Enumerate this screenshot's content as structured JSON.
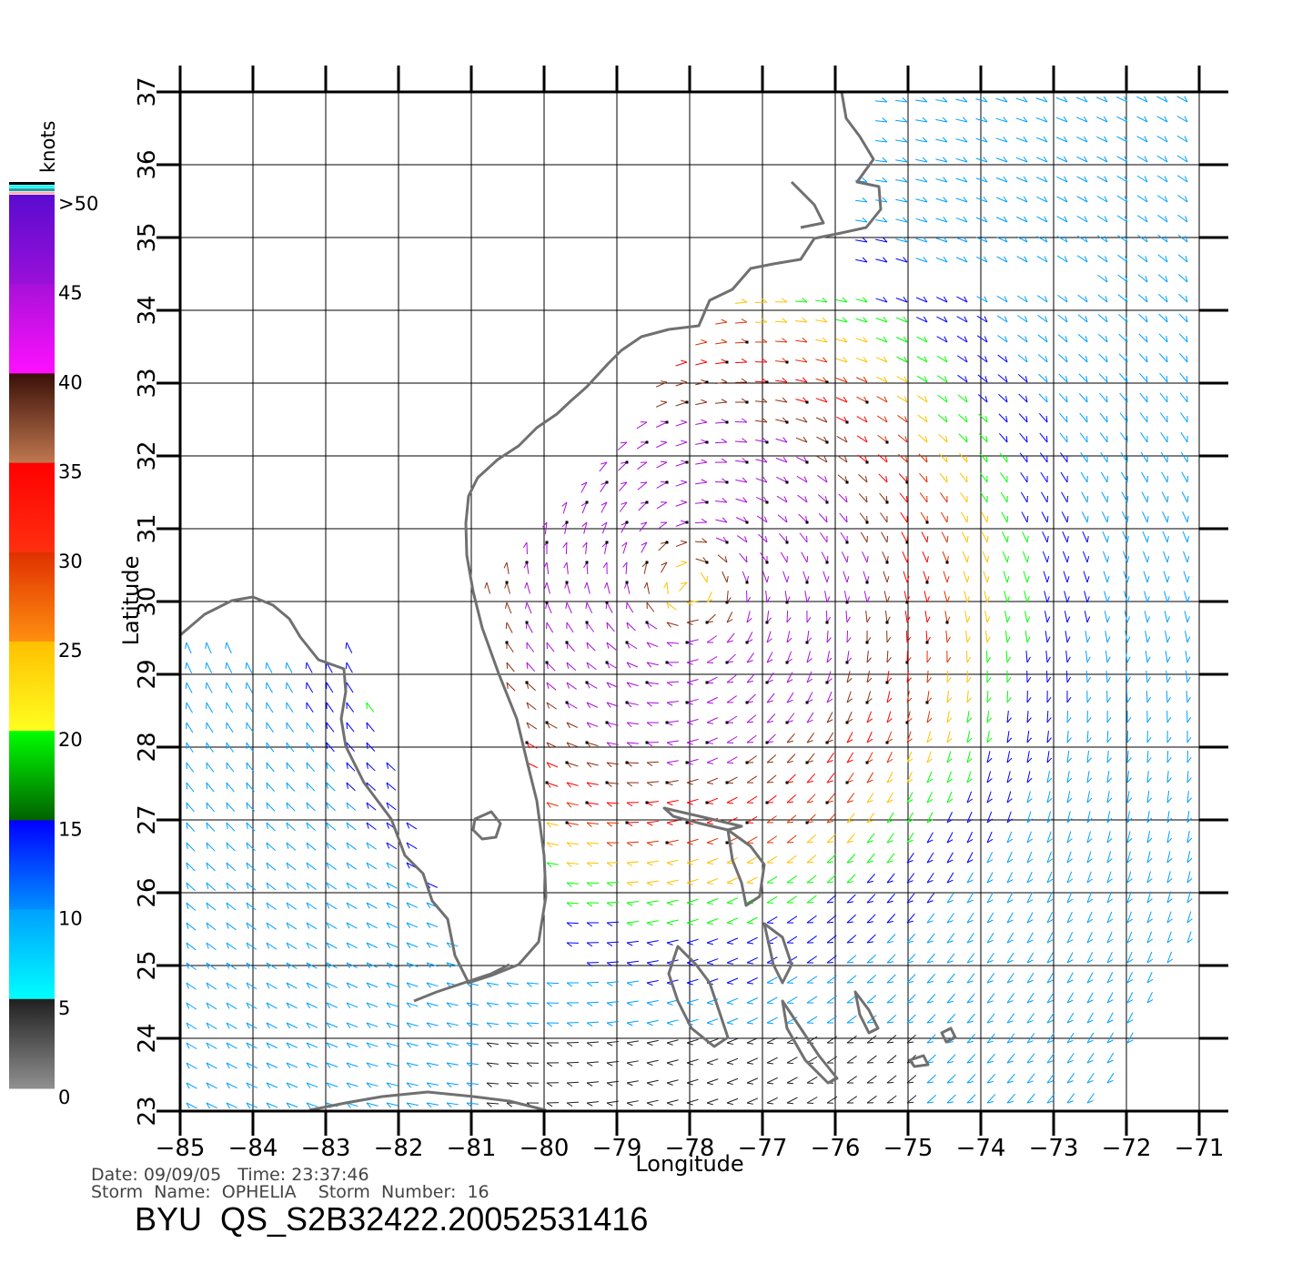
{
  "map": {
    "lon_range": [
      -85,
      -71
    ],
    "lat_range": [
      23,
      37
    ],
    "lon_ticks": [
      "−85",
      "−84",
      "−83",
      "−82",
      "−81",
      "−80",
      "−79",
      "−78",
      "−77",
      "−76",
      "−75",
      "−74",
      "−73",
      "−72",
      "−71"
    ],
    "lat_ticks": [
      "23",
      "24",
      "25",
      "26",
      "27",
      "28",
      "29",
      "30",
      "31",
      "32",
      "33",
      "34",
      "35",
      "36",
      "37"
    ],
    "xlabel": "Longitude",
    "ylabel": "Latitude",
    "grid": true,
    "coastline_color": "#707070",
    "storm_center": {
      "lon": -78.0,
      "lat": 30.2
    }
  },
  "colorbar": {
    "unit": "knots",
    "labels": [
      ">50",
      "45",
      "40",
      "35",
      "30",
      "25",
      "20",
      "15",
      "10",
      "5",
      "0"
    ],
    "segments": [
      {
        "range": [
          45,
          50
        ],
        "top": "#5a0bd0",
        "bottom": "#9a10d8"
      },
      {
        "range": [
          40,
          45
        ],
        "top": "#a810d8",
        "bottom": "#ff10ff"
      },
      {
        "range": [
          35,
          40
        ],
        "top": "#3a1008",
        "bottom": "#c07850"
      },
      {
        "range": [
          30,
          35
        ],
        "top": "#ff0000",
        "bottom": "#ff3010"
      },
      {
        "range": [
          25,
          30
        ],
        "top": "#e03000",
        "bottom": "#ff9010"
      },
      {
        "range": [
          20,
          25
        ],
        "top": "#ffc000",
        "bottom": "#ffff20"
      },
      {
        "range": [
          15,
          20
        ],
        "top": "#00ff00",
        "bottom": "#006000"
      },
      {
        "range": [
          10,
          15
        ],
        "top": "#0000ff",
        "bottom": "#0090ff"
      },
      {
        "range": [
          5,
          10
        ],
        "top": "#00a0ff",
        "bottom": "#00ffff"
      },
      {
        "range": [
          0,
          5
        ],
        "top": "#202020",
        "bottom": "#909090"
      }
    ],
    "rain_flag_colors": [
      "#000000",
      "#00ffff",
      "#20a0a0",
      "#ffb0b0"
    ]
  },
  "meta": {
    "line1": "Date: 09/09/05   Time: 23:37:46",
    "line2": "Storm  Name:  OPHELIA    Storm  Number:  16",
    "product": "BYU  QS_S2B32422.20052531416"
  }
}
